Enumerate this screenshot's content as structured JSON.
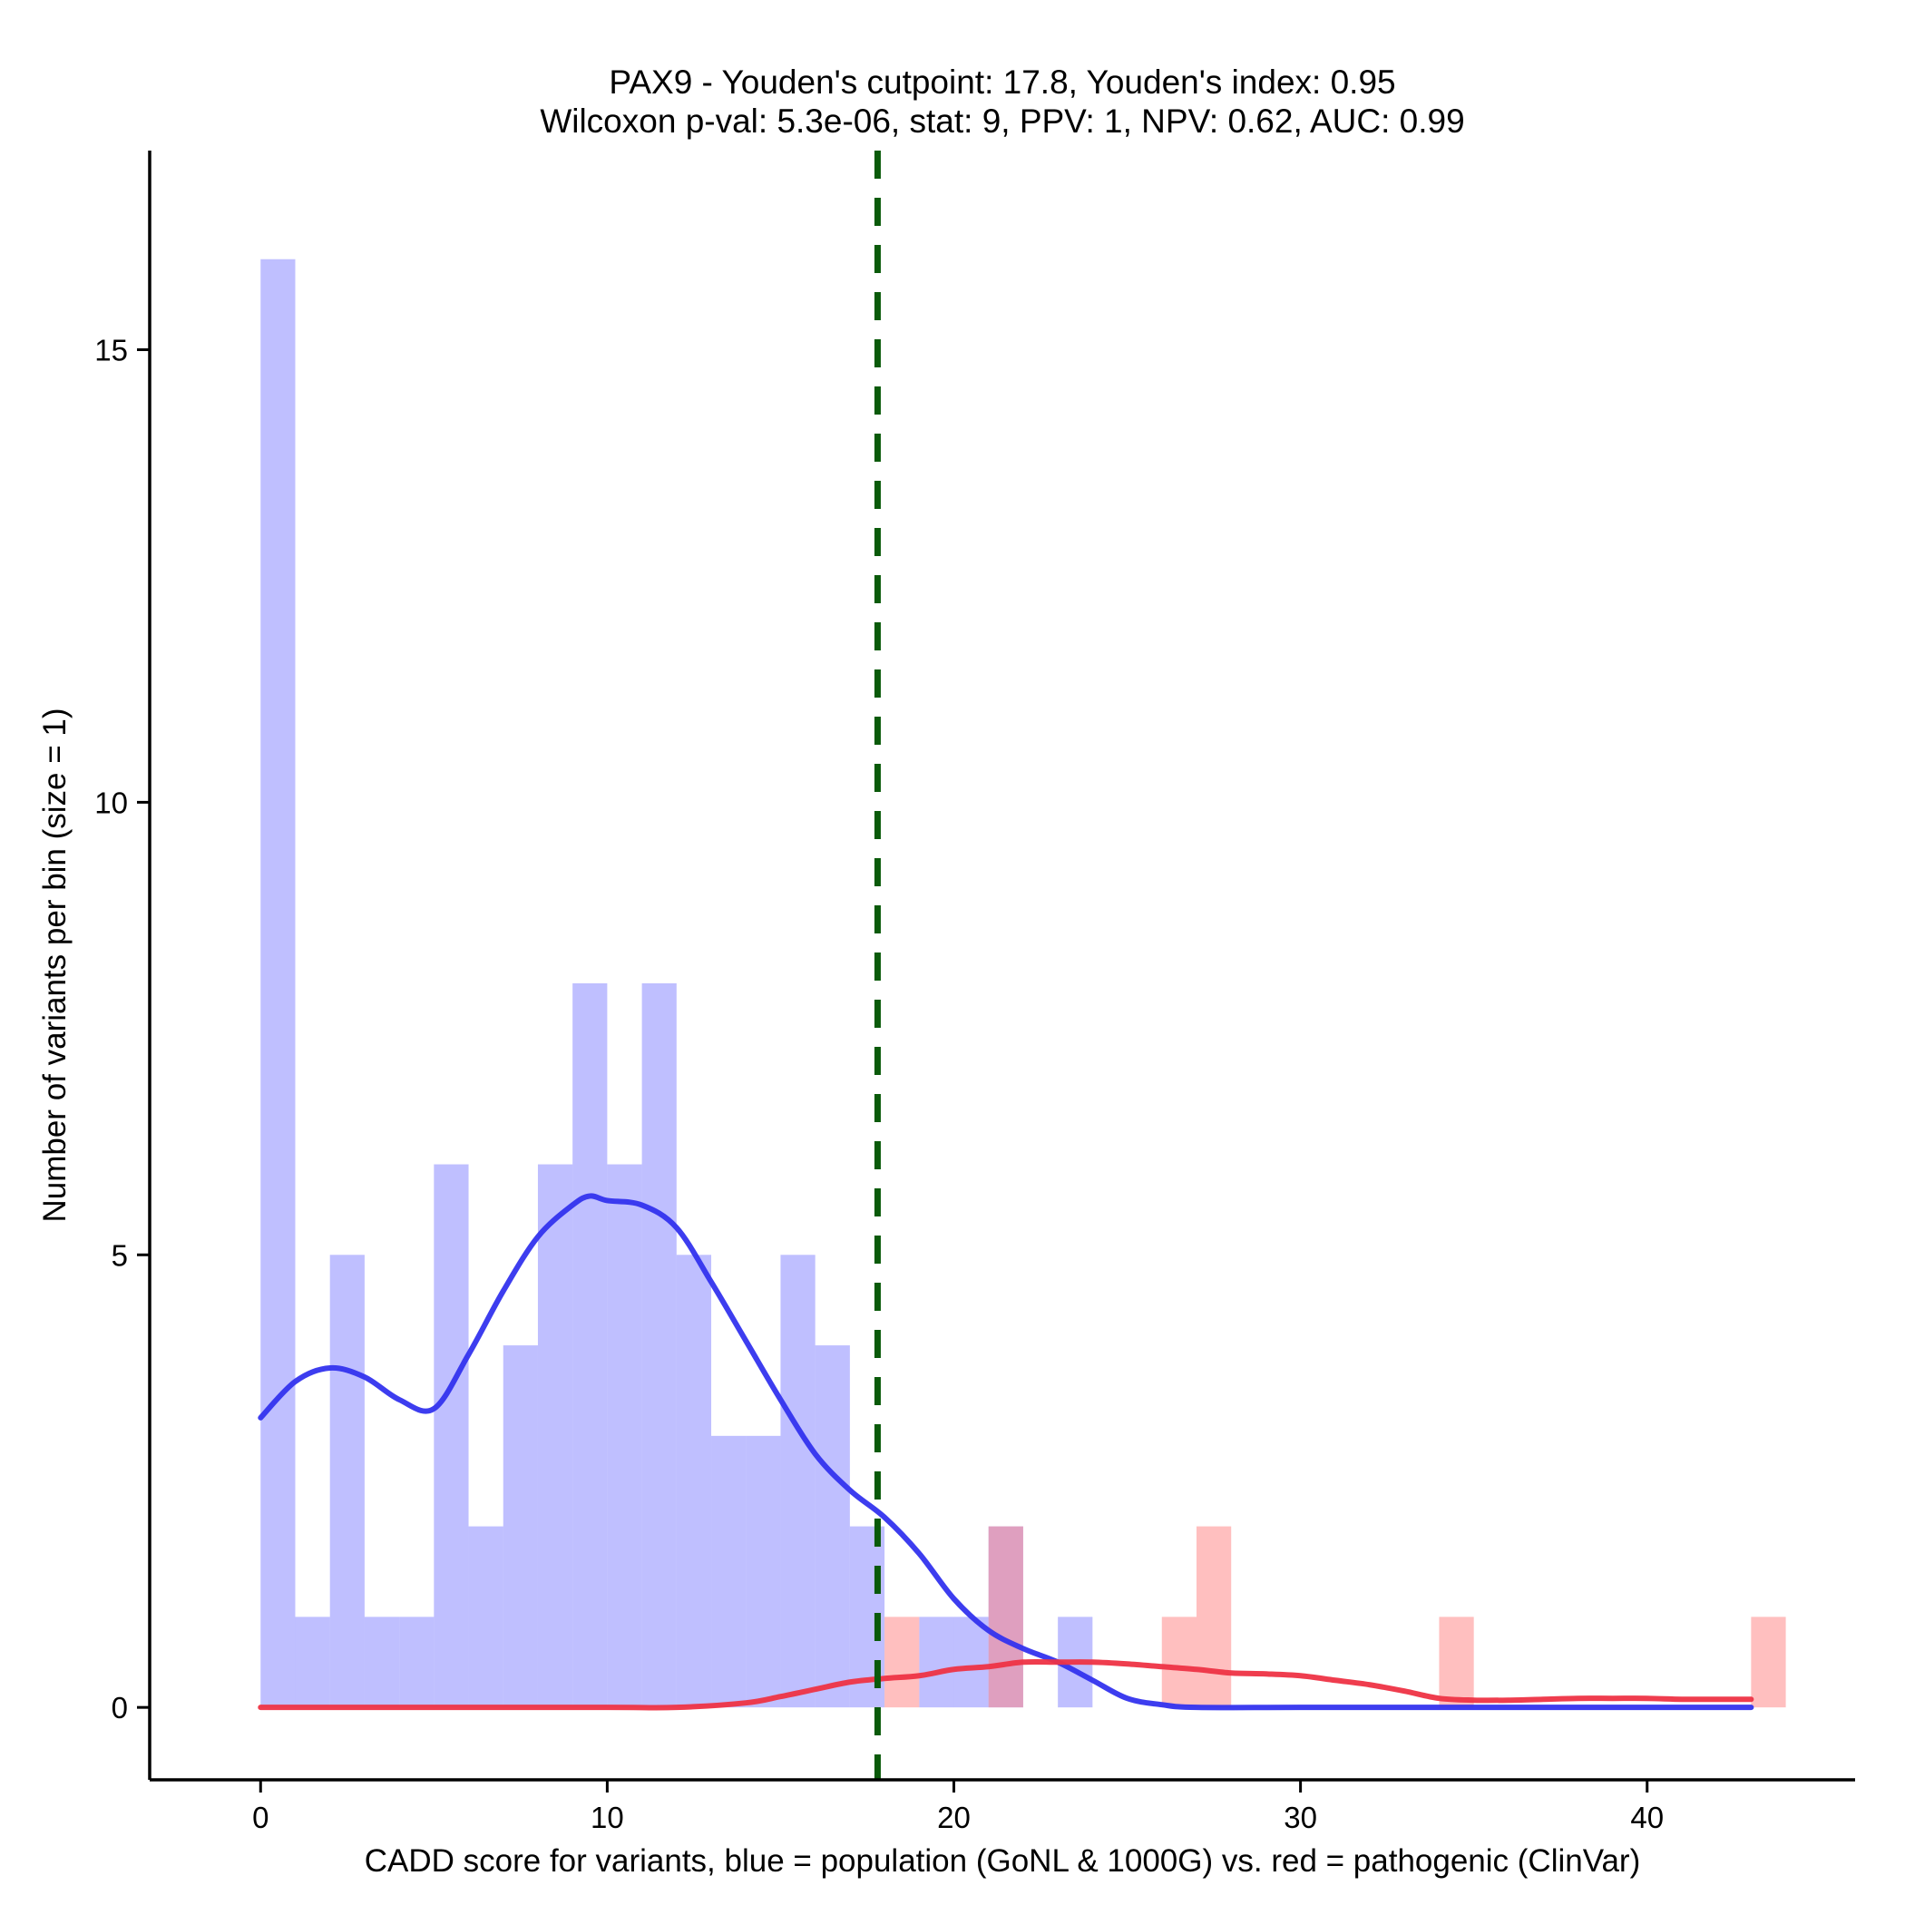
{
  "chart_data": {
    "type": "bar",
    "title": "PAX9 - Youden's cutpoint: 17.8, Youden's index: 0.95",
    "subtitle": "Wilcoxon p-val: 5.3e-06, stat: 9, PPV: 1, NPV: 0.62, AUC: 0.99",
    "xlabel": "CADD score for variants, blue = population (GoNL & 1000G) vs. red = pathogenic (ClinVar)",
    "ylabel": "Number of variants per bin (size = 1)",
    "xlim": [
      -3.2,
      46
    ],
    "ylim": [
      -0.8,
      17.2
    ],
    "x_ticks": [
      0,
      10,
      20,
      30,
      40
    ],
    "y_ticks": [
      0,
      5,
      10,
      15
    ],
    "bin_size": 1,
    "cutpoint": 17.8,
    "colors": {
      "population": "#8080ff",
      "pathogenic": "#ff8080",
      "population_curve": "#3333ee",
      "pathogenic_curve": "#ee3344",
      "cutpoint_line": "#0a5a0a"
    },
    "series": [
      {
        "name": "population",
        "bins": [
          {
            "x": 0,
            "count": 16
          },
          {
            "x": 1,
            "count": 1
          },
          {
            "x": 2,
            "count": 5
          },
          {
            "x": 3,
            "count": 1
          },
          {
            "x": 4,
            "count": 1
          },
          {
            "x": 5,
            "count": 6
          },
          {
            "x": 6,
            "count": 2
          },
          {
            "x": 7,
            "count": 4
          },
          {
            "x": 8,
            "count": 6
          },
          {
            "x": 9,
            "count": 8
          },
          {
            "x": 10,
            "count": 6
          },
          {
            "x": 11,
            "count": 8
          },
          {
            "x": 12,
            "count": 5
          },
          {
            "x": 13,
            "count": 3
          },
          {
            "x": 14,
            "count": 3
          },
          {
            "x": 15,
            "count": 5
          },
          {
            "x": 16,
            "count": 4
          },
          {
            "x": 17,
            "count": 2
          },
          {
            "x": 19,
            "count": 1
          },
          {
            "x": 20,
            "count": 1
          },
          {
            "x": 21,
            "count": 2
          },
          {
            "x": 23,
            "count": 1
          }
        ]
      },
      {
        "name": "pathogenic",
        "bins": [
          {
            "x": 18,
            "count": 1
          },
          {
            "x": 21,
            "count": 2
          },
          {
            "x": 26,
            "count": 1
          },
          {
            "x": 27,
            "count": 2
          },
          {
            "x": 34,
            "count": 1
          },
          {
            "x": 43,
            "count": 1
          }
        ]
      }
    ],
    "curves": [
      {
        "name": "population density",
        "points": [
          [
            0,
            3.2
          ],
          [
            1,
            3.6
          ],
          [
            2,
            3.75
          ],
          [
            3,
            3.65
          ],
          [
            4,
            3.4
          ],
          [
            5,
            3.3
          ],
          [
            6,
            3.9
          ],
          [
            7,
            4.6
          ],
          [
            8,
            5.2
          ],
          [
            9,
            5.55
          ],
          [
            9.5,
            5.65
          ],
          [
            10,
            5.6
          ],
          [
            11,
            5.55
          ],
          [
            12,
            5.3
          ],
          [
            13,
            4.7
          ],
          [
            14,
            4.05
          ],
          [
            15,
            3.4
          ],
          [
            16,
            2.8
          ],
          [
            17,
            2.4
          ],
          [
            18,
            2.1
          ],
          [
            19,
            1.7
          ],
          [
            20,
            1.2
          ],
          [
            21,
            0.85
          ],
          [
            22,
            0.65
          ],
          [
            23,
            0.5
          ],
          [
            24,
            0.3
          ],
          [
            25,
            0.1
          ],
          [
            26,
            0.03
          ],
          [
            27,
            0
          ],
          [
            30,
            0
          ],
          [
            35,
            0
          ],
          [
            40,
            0
          ],
          [
            43,
            0
          ]
        ]
      },
      {
        "name": "pathogenic density",
        "points": [
          [
            0,
            0
          ],
          [
            5,
            0
          ],
          [
            10,
            0
          ],
          [
            12,
            0
          ],
          [
            14,
            0.05
          ],
          [
            15,
            0.12
          ],
          [
            16,
            0.2
          ],
          [
            17,
            0.28
          ],
          [
            18,
            0.32
          ],
          [
            19,
            0.35
          ],
          [
            20,
            0.42
          ],
          [
            21,
            0.45
          ],
          [
            22,
            0.5
          ],
          [
            23,
            0.5
          ],
          [
            24,
            0.5
          ],
          [
            25,
            0.48
          ],
          [
            26,
            0.45
          ],
          [
            27,
            0.42
          ],
          [
            28,
            0.38
          ],
          [
            29,
            0.37
          ],
          [
            30,
            0.35
          ],
          [
            31,
            0.3
          ],
          [
            32,
            0.25
          ],
          [
            33,
            0.18
          ],
          [
            34,
            0.1
          ],
          [
            35,
            0.08
          ],
          [
            36,
            0.08
          ],
          [
            37,
            0.09
          ],
          [
            38,
            0.1
          ],
          [
            39,
            0.1
          ],
          [
            40,
            0.1
          ],
          [
            41,
            0.09
          ],
          [
            42,
            0.09
          ],
          [
            43,
            0.09
          ]
        ]
      }
    ]
  }
}
